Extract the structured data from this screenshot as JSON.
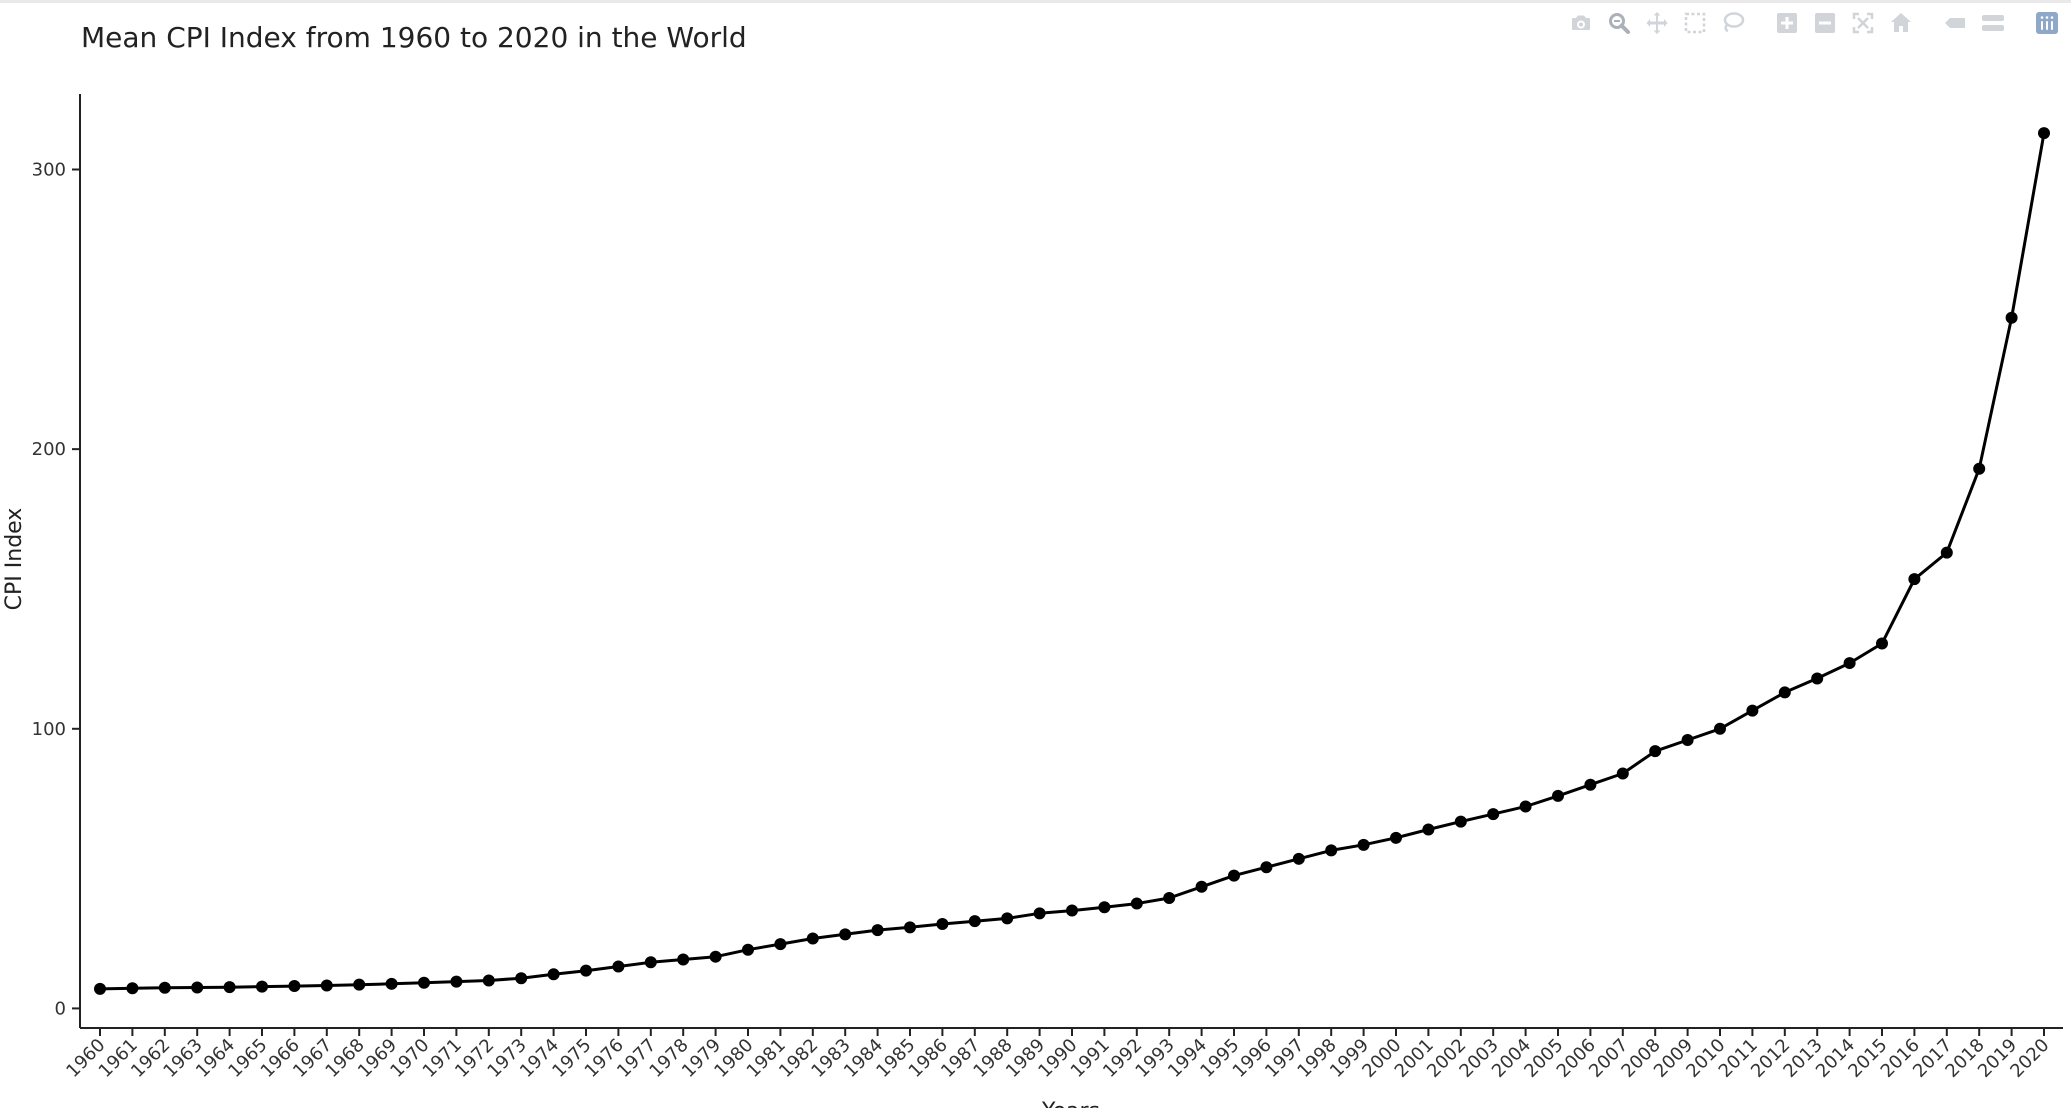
{
  "modebar": {
    "buttons": [
      {
        "name": "camera-icon",
        "group": 1
      },
      {
        "name": "zoom-icon",
        "group": 1,
        "active": true
      },
      {
        "name": "pan-icon",
        "group": 1
      },
      {
        "name": "box-select-icon",
        "group": 1
      },
      {
        "name": "lasso-select-icon",
        "group": 1
      },
      {
        "name": "zoom-in-icon",
        "group": 2
      },
      {
        "name": "zoom-out-icon",
        "group": 2
      },
      {
        "name": "autoscale-icon",
        "group": 2
      },
      {
        "name": "reset-axes-icon",
        "group": 2
      },
      {
        "name": "spike-lines-icon",
        "group": 3
      },
      {
        "name": "compare-hover-icon",
        "group": 3
      },
      {
        "name": "plotly-logo-icon",
        "group": 4
      }
    ]
  },
  "chart_data": {
    "type": "line",
    "title": "Mean CPI Index from 1960 to 2020 in the World",
    "xlabel": "Years",
    "ylabel": "CPI Index",
    "ylim": [
      -7,
      327
    ],
    "yticks": [
      0,
      100,
      200,
      300
    ],
    "categories": [
      "1960",
      "1961",
      "1962",
      "1963",
      "1964",
      "1965",
      "1966",
      "1967",
      "1968",
      "1969",
      "1970",
      "1971",
      "1972",
      "1973",
      "1974",
      "1975",
      "1976",
      "1977",
      "1978",
      "1979",
      "1980",
      "1981",
      "1982",
      "1983",
      "1984",
      "1985",
      "1986",
      "1987",
      "1988",
      "1989",
      "1990",
      "1991",
      "1992",
      "1993",
      "1994",
      "1995",
      "1996",
      "1997",
      "1998",
      "1999",
      "2000",
      "2001",
      "2002",
      "2003",
      "2004",
      "2005",
      "2006",
      "2007",
      "2008",
      "2009",
      "2010",
      "2011",
      "2012",
      "2013",
      "2014",
      "2015",
      "2016",
      "2017",
      "2018",
      "2019",
      "2020"
    ],
    "values": [
      7,
      7.2,
      7.4,
      7.5,
      7.6,
      7.8,
      8,
      8.2,
      8.5,
      8.8,
      9.2,
      9.6,
      10,
      10.8,
      12.2,
      13.5,
      15,
      16.5,
      17.5,
      18.5,
      21,
      23,
      25,
      26.5,
      28,
      29,
      30.2,
      31.2,
      32.2,
      34,
      35,
      36.2,
      37.5,
      39.5,
      43.5,
      47.5,
      50.5,
      53.5,
      56.5,
      58.5,
      61,
      64,
      66.8,
      69.5,
      72.2,
      76,
      80,
      84,
      92,
      96,
      100,
      106.5,
      113,
      118,
      123.5,
      130.5,
      153.5,
      163,
      193,
      247,
      313
    ],
    "grid": false,
    "line_color": "#000000"
  }
}
